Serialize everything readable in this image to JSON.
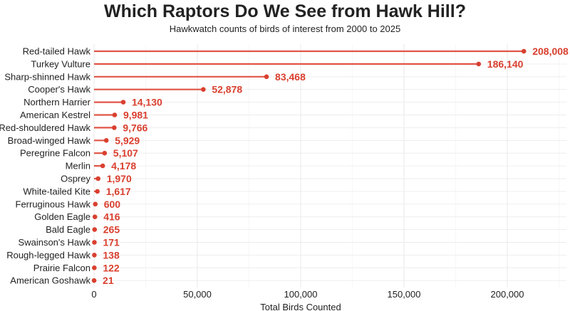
{
  "chart_data": {
    "type": "lollipop",
    "title": "Which Raptors Do We See from Hawk Hill?",
    "subtitle": "Hawkwatch counts of birds of interest from 2000 to 2025",
    "xlabel": "Total Birds Counted",
    "ylabel": "",
    "xlim": [
      0,
      230000
    ],
    "xticks": [
      0,
      50000,
      100000,
      150000,
      200000
    ],
    "xtick_labels": [
      "0",
      "50,000",
      "100,000",
      "150,000",
      "200,000"
    ],
    "grid": true,
    "color": "#d9402f",
    "categories": [
      "Red-tailed Hawk",
      "Turkey Vulture",
      "Sharp-shinned Hawk",
      "Cooper's Hawk",
      "Northern Harrier",
      "American Kestrel",
      "Red-shouldered Hawk",
      "Broad-winged Hawk",
      "Peregrine Falcon",
      "Merlin",
      "Osprey",
      "White-tailed Kite",
      "Ferruginous Hawk",
      "Golden Eagle",
      "Bald Eagle",
      "Swainson's Hawk",
      "Rough-legged Hawk",
      "Prairie Falcon",
      "American Goshawk"
    ],
    "values": [
      208008,
      186140,
      83468,
      52878,
      14130,
      9981,
      9766,
      5929,
      5107,
      4178,
      1970,
      1617,
      600,
      416,
      265,
      171,
      138,
      122,
      21
    ],
    "value_labels": [
      "208,008",
      "186,140",
      "83,468",
      "52,878",
      "14,130",
      "9,981",
      "9,766",
      "5,929",
      "5,107",
      "4,178",
      "1,970",
      "1,617",
      "600",
      "416",
      "265",
      "171",
      "138",
      "122",
      "21"
    ]
  }
}
